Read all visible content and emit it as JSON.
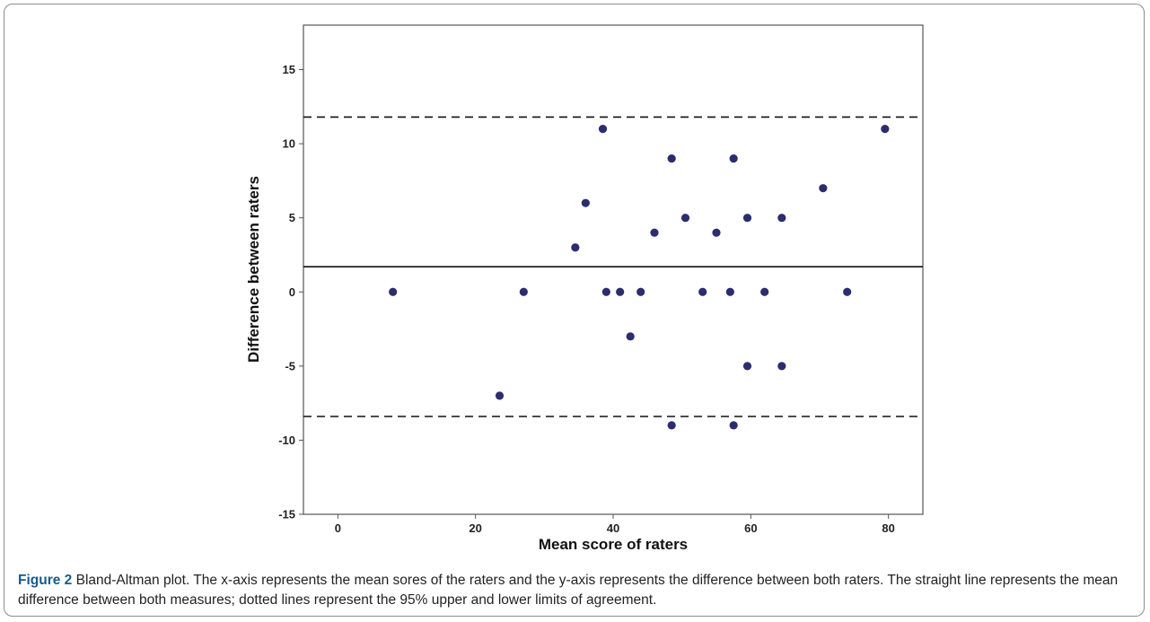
{
  "chart_data": {
    "type": "scatter",
    "title": "",
    "xlabel": "Mean score of raters",
    "ylabel": "Difference between raters",
    "xlim": [
      -5,
      85
    ],
    "ylim": [
      -15,
      18
    ],
    "x_ticks": [
      0,
      20,
      40,
      60,
      80
    ],
    "y_ticks": [
      -15,
      -10,
      -5,
      0,
      5,
      10,
      15
    ],
    "grid": false,
    "point_color": "#2b2d6e",
    "points": [
      {
        "x": 8,
        "y": 0
      },
      {
        "x": 23.5,
        "y": -7
      },
      {
        "x": 27,
        "y": 0
      },
      {
        "x": 34.5,
        "y": 3
      },
      {
        "x": 36,
        "y": 6
      },
      {
        "x": 38.5,
        "y": 11
      },
      {
        "x": 39,
        "y": 0
      },
      {
        "x": 41,
        "y": 0
      },
      {
        "x": 42.5,
        "y": -3
      },
      {
        "x": 44,
        "y": 0
      },
      {
        "x": 46,
        "y": 4
      },
      {
        "x": 48.5,
        "y": 9
      },
      {
        "x": 48.5,
        "y": -9
      },
      {
        "x": 50.5,
        "y": 5
      },
      {
        "x": 53,
        "y": 0
      },
      {
        "x": 55,
        "y": 4
      },
      {
        "x": 57,
        "y": 0
      },
      {
        "x": 57.5,
        "y": 9
      },
      {
        "x": 57.5,
        "y": -9
      },
      {
        "x": 59.5,
        "y": 5
      },
      {
        "x": 59.5,
        "y": -5
      },
      {
        "x": 62,
        "y": 0
      },
      {
        "x": 64.5,
        "y": 5
      },
      {
        "x": 64.5,
        "y": -5
      },
      {
        "x": 70.5,
        "y": 7
      },
      {
        "x": 74,
        "y": 0
      },
      {
        "x": 79.5,
        "y": 11
      }
    ],
    "reference_lines": [
      {
        "y": 1.7,
        "style": "solid"
      },
      {
        "y": 11.8,
        "style": "dashed"
      },
      {
        "y": -8.4,
        "style": "dashed"
      }
    ]
  },
  "caption": {
    "label": "Figure 2",
    "text": " Bland-Altman plot. The x-axis represents the mean sores of the raters and the y-axis represents the difference between both raters. The straight line represents the mean difference between both measures; dotted lines represent the 95% upper and lower limits of agreement."
  }
}
